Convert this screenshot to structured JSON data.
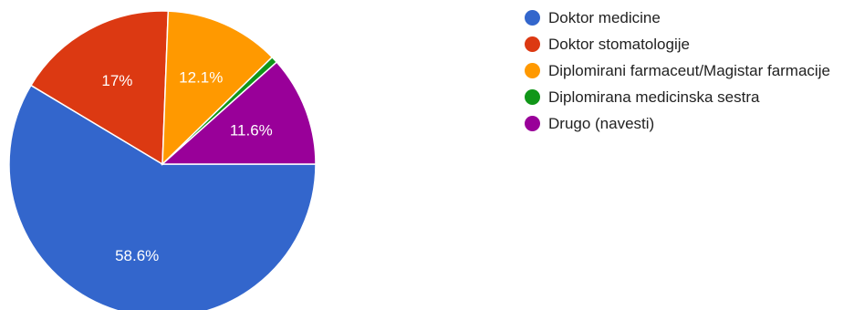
{
  "chart_data": {
    "type": "pie",
    "slices": [
      {
        "label": "Doktor medicine",
        "value": 58.6,
        "display": "58.6%",
        "color": "#3366cc"
      },
      {
        "label": "Doktor stomatologije",
        "value": 17.0,
        "display": "17%",
        "color": "#dc3912"
      },
      {
        "label": "Diplomirani farmaceut/Magistar farmacije",
        "value": 12.1,
        "display": "12.1%",
        "color": "#ff9900"
      },
      {
        "label": "Diplomirana medicinska sestra",
        "value": 0.7,
        "display": "",
        "color": "#109618"
      },
      {
        "label": "Drugo (navesti)",
        "value": 11.6,
        "display": "11.6%",
        "color": "#990099"
      }
    ],
    "legend_position": "right",
    "label_color": "#ffffff"
  }
}
